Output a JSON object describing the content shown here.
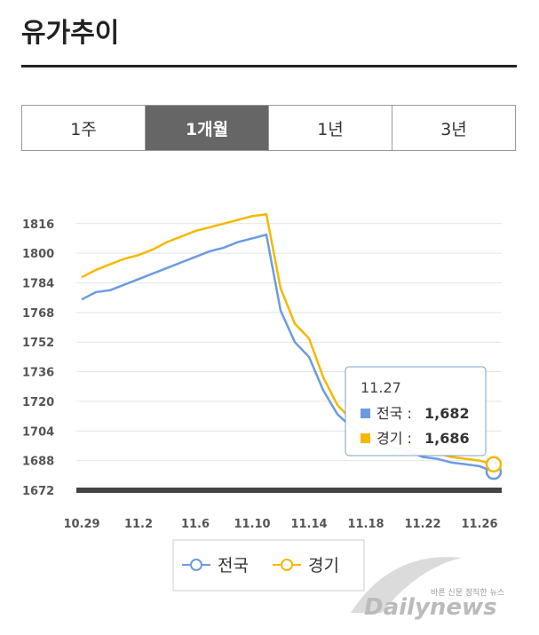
{
  "header": {
    "title": "유가추이"
  },
  "tabs": {
    "items": [
      "1주",
      "1개월",
      "1년",
      "3년"
    ],
    "active": 1
  },
  "chart_data": {
    "type": "line",
    "categories": [
      "10.29",
      null,
      null,
      null,
      "11.2",
      null,
      null,
      null,
      "11.6",
      null,
      null,
      null,
      "11.10",
      null,
      null,
      null,
      "11.14",
      null,
      null,
      null,
      "11.18",
      null,
      null,
      null,
      "11.22",
      null,
      null,
      null,
      "11.26",
      null
    ],
    "series": [
      {
        "name": "전국",
        "color": "#6b9be2",
        "values": [
          1775,
          1779,
          1780,
          1783,
          1786,
          1789,
          1792,
          1795,
          1798,
          1801,
          1803,
          1806,
          1808,
          1810,
          1769,
          1752,
          1744,
          1726,
          1713,
          1706,
          1701,
          1698,
          1695,
          1693,
          1690,
          1689,
          1687,
          1686,
          1685,
          1682
        ]
      },
      {
        "name": "경기",
        "color": "#f5b800",
        "values": [
          1787,
          1791,
          1794,
          1797,
          1799,
          1802,
          1806,
          1809,
          1812,
          1814,
          1816,
          1818,
          1820,
          1821,
          1781,
          1762,
          1754,
          1733,
          1718,
          1710,
          1705,
          1701,
          1698,
          1696,
          1694,
          1692,
          1690,
          1689,
          1688,
          1686
        ]
      }
    ],
    "ylim": [
      1672,
      1825
    ],
    "yticks": [
      1672,
      1688,
      1704,
      1720,
      1736,
      1752,
      1768,
      1784,
      1800,
      1816
    ],
    "grid": true
  },
  "tooltip": {
    "title": "11.27",
    "rows": [
      {
        "label": "전국 :",
        "value": "1,682"
      },
      {
        "label": "경기 :",
        "value": "1,686"
      }
    ]
  },
  "watermark": {
    "brand": "Dailynews",
    "slogan": "바른 신문 정직한 뉴스"
  }
}
